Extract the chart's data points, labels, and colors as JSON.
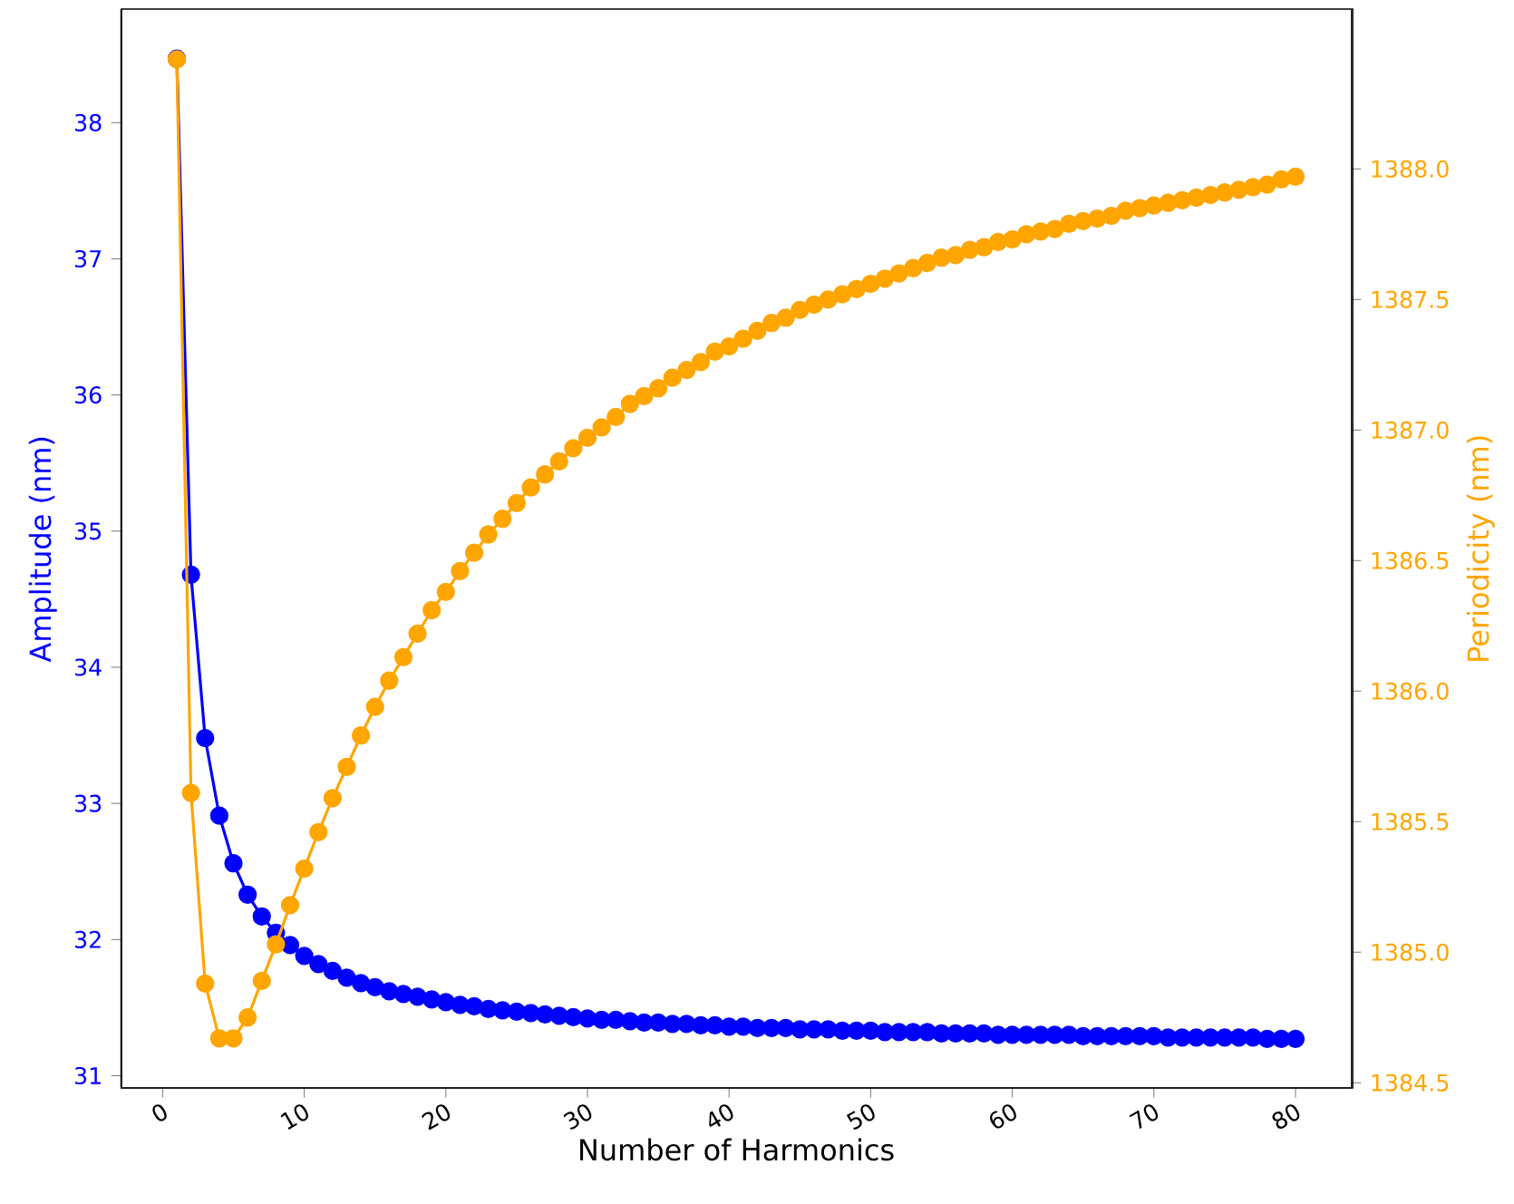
{
  "chart_data": {
    "type": "line",
    "xlabel": "Number of Harmonics",
    "ylabel": "Amplitude (nm)",
    "y2label": "Periodicity (nm)",
    "x": [
      1,
      2,
      3,
      4,
      5,
      6,
      7,
      8,
      9,
      10,
      11,
      12,
      13,
      14,
      15,
      16,
      17,
      18,
      19,
      20,
      21,
      22,
      23,
      24,
      25,
      26,
      27,
      28,
      29,
      30,
      31,
      32,
      33,
      34,
      35,
      36,
      37,
      38,
      39,
      40,
      41,
      42,
      43,
      44,
      45,
      46,
      47,
      48,
      49,
      50,
      51,
      52,
      53,
      54,
      55,
      56,
      57,
      58,
      59,
      60,
      61,
      62,
      63,
      64,
      65,
      66,
      67,
      68,
      69,
      70,
      71,
      72,
      73,
      74,
      75,
      76,
      77,
      78,
      79,
      80
    ],
    "series": [
      {
        "color": "#0000ff",
        "values": [
          38.47,
          34.68,
          33.48,
          32.91,
          32.56,
          32.33,
          32.17,
          32.05,
          31.96,
          31.88,
          31.82,
          31.77,
          31.72,
          31.68,
          31.65,
          31.62,
          31.6,
          31.58,
          31.56,
          31.54,
          31.52,
          31.51,
          31.49,
          31.48,
          31.47,
          31.46,
          31.45,
          31.44,
          31.43,
          31.42,
          31.41,
          31.41,
          31.4,
          31.39,
          31.39,
          31.38,
          31.38,
          31.37,
          31.37,
          31.36,
          31.36,
          31.35,
          31.35,
          31.35,
          31.34,
          31.34,
          31.34,
          31.33,
          31.33,
          31.33,
          31.32,
          31.32,
          31.32,
          31.32,
          31.31,
          31.31,
          31.31,
          31.31,
          31.3,
          31.3,
          31.3,
          31.3,
          31.3,
          31.3,
          31.29,
          31.29,
          31.29,
          31.29,
          31.29,
          31.29,
          31.28,
          31.28,
          31.28,
          31.28,
          31.28,
          31.28,
          31.28,
          31.27,
          31.27,
          31.27
        ]
      },
      {
        "color": "#ffa500",
        "axis": "y2",
        "values": [
          1388.42,
          1385.61,
          1384.88,
          1384.67,
          1384.67,
          1384.75,
          1384.89,
          1385.03,
          1385.18,
          1385.32,
          1385.46,
          1385.59,
          1385.71,
          1385.83,
          1385.94,
          1386.04,
          1386.13,
          1386.22,
          1386.31,
          1386.38,
          1386.46,
          1386.53,
          1386.6,
          1386.66,
          1386.72,
          1386.78,
          1386.83,
          1386.88,
          1386.93,
          1386.97,
          1387.01,
          1387.05,
          1387.1,
          1387.13,
          1387.16,
          1387.2,
          1387.23,
          1387.26,
          1387.3,
          1387.32,
          1387.35,
          1387.38,
          1387.41,
          1387.43,
          1387.46,
          1387.48,
          1387.5,
          1387.52,
          1387.54,
          1387.56,
          1387.58,
          1387.6,
          1387.62,
          1387.64,
          1387.66,
          1387.67,
          1387.69,
          1387.7,
          1387.72,
          1387.73,
          1387.75,
          1387.76,
          1387.77,
          1387.79,
          1387.8,
          1387.81,
          1387.82,
          1387.84,
          1387.85,
          1387.86,
          1387.87,
          1387.88,
          1387.89,
          1387.9,
          1387.91,
          1387.92,
          1387.93,
          1387.94,
          1387.96,
          1387.97
        ]
      }
    ],
    "xlim": [
      -2.95,
      83.95
    ],
    "xticks": [
      0,
      10,
      20,
      30,
      40,
      50,
      60,
      70,
      80
    ],
    "ylim": [
      30.91,
      38.83
    ],
    "yticks": [
      31,
      32,
      33,
      34,
      35,
      36,
      37,
      38
    ],
    "y2lim": [
      1384.48,
      1388.61
    ],
    "y2ticks": [
      1384.5,
      {
        "value": 1385,
        "label": "1385.0"
      },
      1385.5,
      {
        "value": 1386,
        "label": "1386.0"
      },
      1386.5,
      {
        "value": 1387,
        "label": "1387.0"
      },
      1387.5,
      {
        "value": 1388,
        "label": "1388.0"
      }
    ],
    "marker": "circle",
    "line_style": "solid",
    "grid": false
  }
}
